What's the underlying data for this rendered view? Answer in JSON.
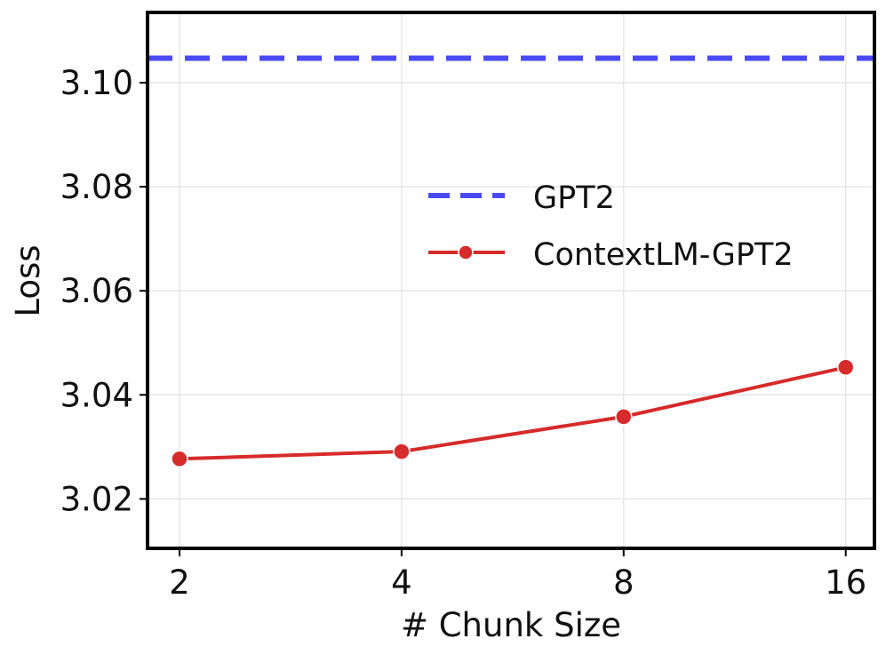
{
  "chart_data": {
    "type": "line",
    "x_scale": "log2",
    "x": [
      2,
      4,
      8,
      16
    ],
    "x_tick_labels": [
      "2",
      "4",
      "8",
      "16"
    ],
    "xlabel": "# Chunk Size",
    "ylabel": "Loss",
    "ylim": [
      3.0105,
      3.1135
    ],
    "xlim": [
      1.81,
      17.5
    ],
    "y_ticks": [
      3.02,
      3.04,
      3.06,
      3.08,
      3.1
    ],
    "y_tick_labels": [
      "3.02",
      "3.04",
      "3.06",
      "3.08",
      "3.10"
    ],
    "grid": true,
    "legend_position": "center-right",
    "series": [
      {
        "name": "GPT2",
        "kind": "hline",
        "y": 3.1047,
        "color": "#4a4af5",
        "style": "dashed"
      },
      {
        "name": "ContextLM-GPT2",
        "kind": "line",
        "values": [
          3.0277,
          3.0291,
          3.0358,
          3.0453
        ],
        "color": "#d62b2b",
        "marker": "circle"
      }
    ]
  }
}
